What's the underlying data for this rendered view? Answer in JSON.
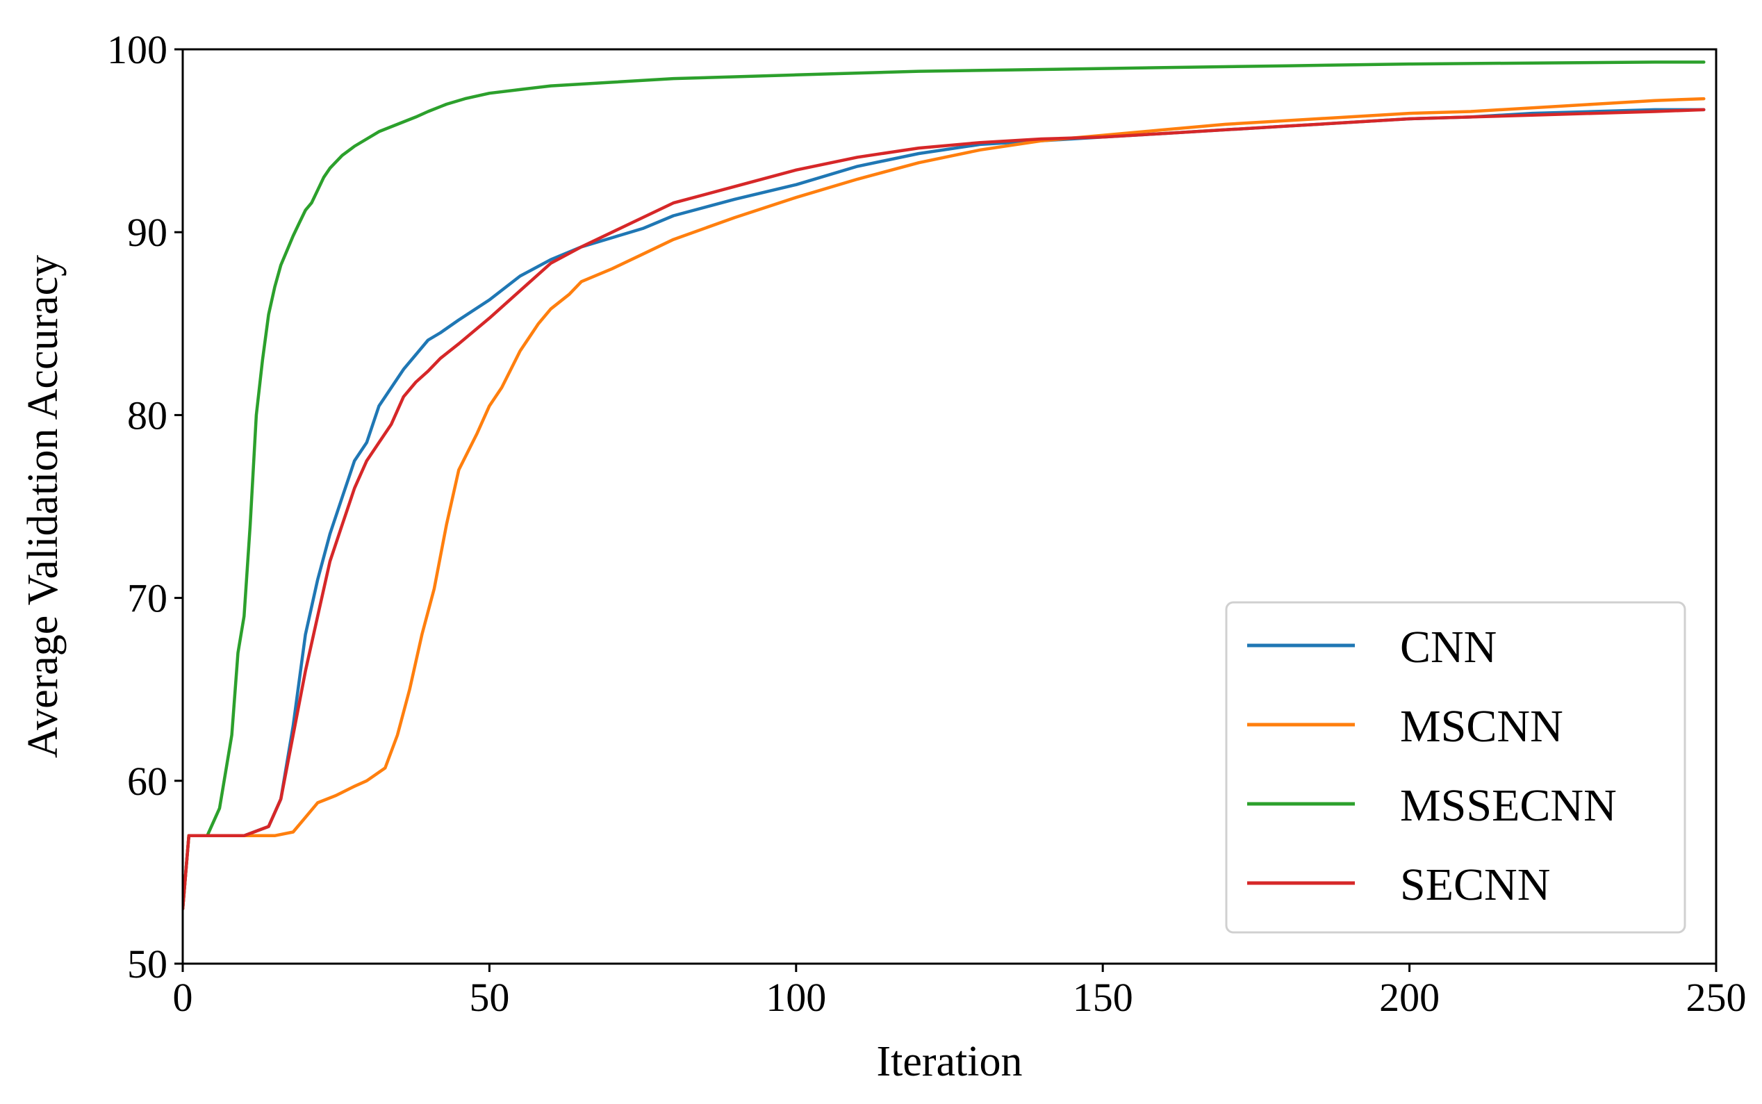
{
  "chart_data": {
    "type": "line",
    "title": "",
    "xlabel": "Iteration",
    "ylabel": "Average Validation Accuracy",
    "xlim": [
      0,
      250
    ],
    "ylim": [
      50,
      100
    ],
    "xticks": [
      0,
      50,
      100,
      150,
      200,
      250
    ],
    "yticks": [
      50,
      60,
      70,
      80,
      90,
      100
    ],
    "grid": false,
    "legend_position": "lower-right",
    "series": [
      {
        "name": "CNN",
        "color": "#1f77b4",
        "x": [
          0,
          1,
          5,
          10,
          14,
          16,
          18,
          20,
          22,
          24,
          26,
          28,
          30,
          32,
          34,
          36,
          38,
          40,
          42,
          45,
          50,
          55,
          60,
          65,
          70,
          75,
          80,
          90,
          100,
          110,
          120,
          130,
          140,
          150,
          160,
          170,
          180,
          190,
          200,
          210,
          220,
          230,
          240,
          248
        ],
        "y": [
          53,
          57,
          57,
          57,
          57.5,
          59,
          63,
          68,
          71,
          73.5,
          75.5,
          77.5,
          78.5,
          80.5,
          81.5,
          82.5,
          83.3,
          84.1,
          84.5,
          85.2,
          86.3,
          87.6,
          88.5,
          89.2,
          89.7,
          90.2,
          90.9,
          91.8,
          92.6,
          93.6,
          94.3,
          94.8,
          95.0,
          95.2,
          95.4,
          95.6,
          95.8,
          96.0,
          96.2,
          96.3,
          96.5,
          96.6,
          96.7,
          96.7
        ]
      },
      {
        "name": "MSCNN",
        "color": "#ff7f0e",
        "x": [
          0,
          1,
          5,
          10,
          15,
          18,
          20,
          22,
          25,
          28,
          30,
          33,
          35,
          37,
          39,
          41,
          43,
          45,
          48,
          50,
          52,
          55,
          58,
          60,
          63,
          65,
          70,
          75,
          80,
          90,
          100,
          110,
          120,
          130,
          140,
          150,
          160,
          170,
          180,
          190,
          200,
          210,
          220,
          230,
          240,
          248
        ],
        "y": [
          53,
          57,
          57,
          57,
          57,
          57.2,
          58,
          58.8,
          59.2,
          59.7,
          60,
          60.7,
          62.5,
          65,
          68,
          70.5,
          74,
          77,
          79,
          80.5,
          81.5,
          83.5,
          85,
          85.8,
          86.6,
          87.3,
          88,
          88.8,
          89.6,
          90.8,
          91.9,
          92.9,
          93.8,
          94.5,
          95.0,
          95.3,
          95.6,
          95.9,
          96.1,
          96.3,
          96.5,
          96.6,
          96.8,
          97.0,
          97.2,
          97.3
        ]
      },
      {
        "name": "MSSECNN",
        "color": "#2ca02c",
        "x": [
          0,
          1,
          4,
          6,
          8,
          9,
          10,
          11,
          12,
          13,
          14,
          15,
          16,
          17,
          18,
          19,
          20,
          21,
          22,
          23,
          24,
          26,
          28,
          30,
          32,
          35,
          38,
          40,
          43,
          46,
          50,
          55,
          60,
          65,
          70,
          80,
          90,
          100,
          120,
          140,
          160,
          180,
          200,
          220,
          240,
          248
        ],
        "y": [
          53,
          57,
          57,
          58.5,
          62.5,
          67,
          69,
          74,
          80,
          83,
          85.5,
          87,
          88.2,
          89,
          89.8,
          90.5,
          91.2,
          91.6,
          92.3,
          93,
          93.5,
          94.2,
          94.7,
          95.1,
          95.5,
          95.9,
          96.3,
          96.6,
          97,
          97.3,
          97.6,
          97.8,
          98,
          98.1,
          98.2,
          98.4,
          98.5,
          98.6,
          98.8,
          98.9,
          99.0,
          99.1,
          99.2,
          99.25,
          99.3,
          99.3
        ]
      },
      {
        "name": "SECNN",
        "color": "#d62728",
        "x": [
          0,
          1,
          5,
          10,
          14,
          16,
          18,
          20,
          22,
          24,
          26,
          28,
          30,
          32,
          34,
          36,
          38,
          40,
          42,
          45,
          50,
          55,
          60,
          65,
          70,
          75,
          80,
          90,
          100,
          110,
          120,
          130,
          140,
          150,
          160,
          170,
          180,
          190,
          200,
          210,
          220,
          230,
          240,
          248
        ],
        "y": [
          53,
          57,
          57,
          57,
          57.5,
          59,
          62.5,
          66,
          69,
          72,
          74,
          76,
          77.5,
          78.5,
          79.5,
          81,
          81.8,
          82.4,
          83.1,
          83.9,
          85.3,
          86.8,
          88.3,
          89.2,
          90.0,
          90.8,
          91.6,
          92.5,
          93.4,
          94.1,
          94.6,
          94.9,
          95.1,
          95.2,
          95.4,
          95.6,
          95.8,
          96.0,
          96.2,
          96.3,
          96.4,
          96.5,
          96.6,
          96.7
        ]
      }
    ]
  }
}
